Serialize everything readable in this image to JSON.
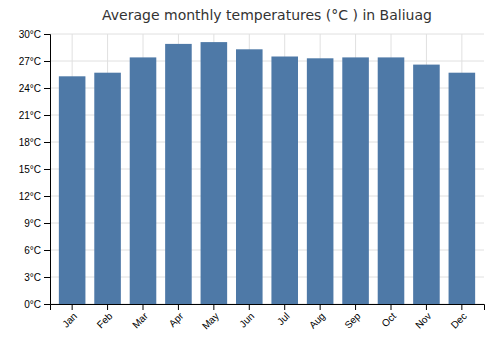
{
  "chart_data": {
    "type": "bar",
    "title": "Average monthly temperatures (°C ) in Baliuag",
    "categories": [
      "Jan",
      "Feb",
      "Mar",
      "Apr",
      "May",
      "Jun",
      "Jul",
      "Aug",
      "Sep",
      "Oct",
      "Nov",
      "Dec"
    ],
    "values": [
      25.3,
      25.7,
      27.4,
      28.9,
      29.1,
      28.3,
      27.5,
      27.3,
      27.4,
      27.4,
      26.6,
      25.7
    ],
    "ylim": [
      0,
      30
    ],
    "yticks": [
      {
        "value": 0,
        "label": "0°C"
      },
      {
        "value": 3,
        "label": "3°C"
      },
      {
        "value": 6,
        "label": "6°C"
      },
      {
        "value": 9,
        "label": "9°C"
      },
      {
        "value": 12,
        "label": "12°C"
      },
      {
        "value": 15,
        "label": "15°C"
      },
      {
        "value": 18,
        "label": "18°C"
      },
      {
        "value": 21,
        "label": "21°C"
      },
      {
        "value": 24,
        "label": "24°C"
      },
      {
        "value": 27,
        "label": "27°C"
      },
      {
        "value": 30,
        "label": "30°C"
      }
    ],
    "grid": true
  }
}
